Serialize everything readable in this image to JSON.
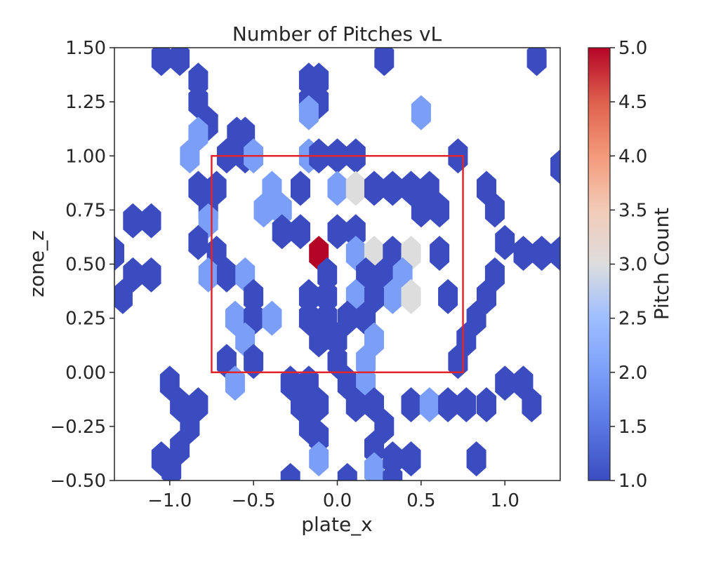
{
  "chart_data": {
    "type": "hexbin",
    "title": "Number of Pitches vL",
    "xlabel": "plate_x",
    "ylabel": "zone_z",
    "xlim": [
      -1.33,
      1.33
    ],
    "ylim": [
      -0.5,
      1.5
    ],
    "x_ticks": [
      -1.0,
      -0.5,
      0.0,
      0.5,
      1.0
    ],
    "x_tick_labels": [
      "−1.0",
      "−0.5",
      "0.0",
      "0.5",
      "1.0"
    ],
    "y_ticks": [
      1.5,
      1.25,
      1.0,
      0.75,
      0.5,
      0.25,
      0.0,
      -0.25,
      -0.5
    ],
    "y_tick_labels": [
      "1.50",
      "1.25",
      "1.00",
      "0.75",
      "0.50",
      "0.25",
      "0.00",
      "−0.25",
      "−0.50"
    ],
    "grid": false,
    "colorbar": {
      "label": "Pitch Count",
      "range": [
        1.0,
        5.0
      ],
      "ticks": [
        5.0,
        4.5,
        4.0,
        3.5,
        3.0,
        2.5,
        2.0,
        1.5,
        1.0
      ],
      "tick_labels": [
        "5.0",
        "4.5",
        "4.0",
        "3.5",
        "3.0",
        "2.5",
        "2.0",
        "1.5",
        "1.0"
      ],
      "colormap": "coolwarm"
    },
    "strike_zone": {
      "x": [
        -0.75,
        0.75
      ],
      "z": [
        0.0,
        1.0
      ],
      "color": "#e3242b"
    },
    "bins": [
      {
        "x": -1.05,
        "z": 1.45,
        "count": 1
      },
      {
        "x": -0.94,
        "z": 1.45,
        "count": 1
      },
      {
        "x": 0.28,
        "z": 1.45,
        "count": 1
      },
      {
        "x": 1.19,
        "z": 1.45,
        "count": 1
      },
      {
        "x": -0.83,
        "z": 1.35,
        "count": 1
      },
      {
        "x": -0.83,
        "z": 1.25,
        "count": 1
      },
      {
        "x": -0.17,
        "z": 1.35,
        "count": 1
      },
      {
        "x": -0.11,
        "z": 1.35,
        "count": 1
      },
      {
        "x": -0.17,
        "z": 1.25,
        "count": 1
      },
      {
        "x": -0.11,
        "z": 1.25,
        "count": 1
      },
      {
        "x": -0.17,
        "z": 1.2,
        "count": 2
      },
      {
        "x": 0.5,
        "z": 1.2,
        "count": 2
      },
      {
        "x": -0.77,
        "z": 1.15,
        "count": 1
      },
      {
        "x": -0.83,
        "z": 1.1,
        "count": 2
      },
      {
        "x": -0.88,
        "z": 1.0,
        "count": 2
      },
      {
        "x": -0.6,
        "z": 1.1,
        "count": 1
      },
      {
        "x": -0.55,
        "z": 1.1,
        "count": 1
      },
      {
        "x": -0.66,
        "z": 1.0,
        "count": 1
      },
      {
        "x": -0.55,
        "z": 1.0,
        "count": 1
      },
      {
        "x": -0.5,
        "z": 1.0,
        "count": 2
      },
      {
        "x": -0.17,
        "z": 1.0,
        "count": 2
      },
      {
        "x": -0.11,
        "z": 1.0,
        "count": 1
      },
      {
        "x": 0.0,
        "z": 1.0,
        "count": 1
      },
      {
        "x": 0.11,
        "z": 1.0,
        "count": 1
      },
      {
        "x": 0.72,
        "z": 1.0,
        "count": 1
      },
      {
        "x": 1.33,
        "z": 0.95,
        "count": 1
      },
      {
        "x": -0.83,
        "z": 0.85,
        "count": 1
      },
      {
        "x": -0.72,
        "z": 0.85,
        "count": 1
      },
      {
        "x": -0.77,
        "z": 0.75,
        "count": 1
      },
      {
        "x": -0.39,
        "z": 0.85,
        "count": 2
      },
      {
        "x": -0.44,
        "z": 0.75,
        "count": 2
      },
      {
        "x": -0.33,
        "z": 0.75,
        "count": 2
      },
      {
        "x": -0.22,
        "z": 0.85,
        "count": 1
      },
      {
        "x": 0.0,
        "z": 0.85,
        "count": 2
      },
      {
        "x": 0.11,
        "z": 0.85,
        "count": 3
      },
      {
        "x": 0.22,
        "z": 0.85,
        "count": 1
      },
      {
        "x": 0.33,
        "z": 0.85,
        "count": 1
      },
      {
        "x": 0.44,
        "z": 0.85,
        "count": 1
      },
      {
        "x": 0.55,
        "z": 0.85,
        "count": 1
      },
      {
        "x": 0.61,
        "z": 0.75,
        "count": 1
      },
      {
        "x": 0.5,
        "z": 0.75,
        "count": 1
      },
      {
        "x": 0.89,
        "z": 0.85,
        "count": 1
      },
      {
        "x": 0.94,
        "z": 0.75,
        "count": 1
      },
      {
        "x": -1.22,
        "z": 0.7,
        "count": 1
      },
      {
        "x": -1.11,
        "z": 0.7,
        "count": 1
      },
      {
        "x": -0.77,
        "z": 0.7,
        "count": 2
      },
      {
        "x": -0.33,
        "z": 0.65,
        "count": 1
      },
      {
        "x": -0.22,
        "z": 0.65,
        "count": 1
      },
      {
        "x": 0.0,
        "z": 0.65,
        "count": 1
      },
      {
        "x": 0.11,
        "z": 0.65,
        "count": 1
      },
      {
        "x": -0.11,
        "z": 0.55,
        "count": 5
      },
      {
        "x": 0.11,
        "z": 0.55,
        "count": 2
      },
      {
        "x": 0.22,
        "z": 0.55,
        "count": 3
      },
      {
        "x": 0.33,
        "z": 0.55,
        "count": 1
      },
      {
        "x": 0.44,
        "z": 0.55,
        "count": 3
      },
      {
        "x": 0.61,
        "z": 0.55,
        "count": 1
      },
      {
        "x": -0.83,
        "z": 0.6,
        "count": 1
      },
      {
        "x": -0.72,
        "z": 0.55,
        "count": 1
      },
      {
        "x": -0.77,
        "z": 0.45,
        "count": 2
      },
      {
        "x": -0.66,
        "z": 0.45,
        "count": 1
      },
      {
        "x": -0.55,
        "z": 0.45,
        "count": 2
      },
      {
        "x": 1.0,
        "z": 0.6,
        "count": 1
      },
      {
        "x": 1.11,
        "z": 0.55,
        "count": 1
      },
      {
        "x": 1.22,
        "z": 0.55,
        "count": 1
      },
      {
        "x": 1.33,
        "z": 0.55,
        "count": 1
      },
      {
        "x": 0.94,
        "z": 0.45,
        "count": 1
      },
      {
        "x": -1.33,
        "z": 0.55,
        "count": 1
      },
      {
        "x": -1.22,
        "z": 0.45,
        "count": 1
      },
      {
        "x": -1.11,
        "z": 0.45,
        "count": 1
      },
      {
        "x": -1.28,
        "z": 0.35,
        "count": 1
      },
      {
        "x": -0.06,
        "z": 0.45,
        "count": 1
      },
      {
        "x": -0.17,
        "z": 0.35,
        "count": 1
      },
      {
        "x": -0.06,
        "z": 0.35,
        "count": 1
      },
      {
        "x": 0.17,
        "z": 0.45,
        "count": 1
      },
      {
        "x": 0.28,
        "z": 0.45,
        "count": 1
      },
      {
        "x": 0.39,
        "z": 0.45,
        "count": 2
      },
      {
        "x": 0.33,
        "z": 0.35,
        "count": 2
      },
      {
        "x": 0.44,
        "z": 0.35,
        "count": 3
      },
      {
        "x": 0.11,
        "z": 0.35,
        "count": 2
      },
      {
        "x": 0.22,
        "z": 0.35,
        "count": 1
      },
      {
        "x": 0.66,
        "z": 0.35,
        "count": 1
      },
      {
        "x": 0.89,
        "z": 0.35,
        "count": 1
      },
      {
        "x": -0.5,
        "z": 0.35,
        "count": 1
      },
      {
        "x": -0.61,
        "z": 0.25,
        "count": 2
      },
      {
        "x": -0.5,
        "z": 0.25,
        "count": 1
      },
      {
        "x": -0.39,
        "z": 0.25,
        "count": 2
      },
      {
        "x": -0.17,
        "z": 0.25,
        "count": 1
      },
      {
        "x": -0.06,
        "z": 0.25,
        "count": 1
      },
      {
        "x": 0.06,
        "z": 0.25,
        "count": 1
      },
      {
        "x": 0.17,
        "z": 0.25,
        "count": 1
      },
      {
        "x": 0.22,
        "z": 0.15,
        "count": 2
      },
      {
        "x": 0.0,
        "z": 0.15,
        "count": 1
      },
      {
        "x": -0.11,
        "z": 0.15,
        "count": 1
      },
      {
        "x": 0.83,
        "z": 0.25,
        "count": 1
      },
      {
        "x": 0.77,
        "z": 0.15,
        "count": 1
      },
      {
        "x": -0.66,
        "z": 0.05,
        "count": 1
      },
      {
        "x": -0.55,
        "z": 0.15,
        "count": 2
      },
      {
        "x": -0.5,
        "z": 0.05,
        "count": 1
      },
      {
        "x": 0.0,
        "z": 0.05,
        "count": 1
      },
      {
        "x": 0.17,
        "z": 0.05,
        "count": 2
      },
      {
        "x": 0.72,
        "z": 0.05,
        "count": 1
      },
      {
        "x": -0.61,
        "z": -0.05,
        "count": 2
      },
      {
        "x": -1.0,
        "z": -0.05,
        "count": 1
      },
      {
        "x": -0.94,
        "z": -0.15,
        "count": 1
      },
      {
        "x": -0.83,
        "z": -0.15,
        "count": 1
      },
      {
        "x": -0.88,
        "z": -0.25,
        "count": 1
      },
      {
        "x": -0.94,
        "z": -0.35,
        "count": 1
      },
      {
        "x": -0.99,
        "z": -0.45,
        "count": 1
      },
      {
        "x": -1.05,
        "z": -0.4,
        "count": 1
      },
      {
        "x": -0.28,
        "z": -0.05,
        "count": 1
      },
      {
        "x": -0.17,
        "z": -0.05,
        "count": 1
      },
      {
        "x": -0.22,
        "z": -0.15,
        "count": 1
      },
      {
        "x": -0.11,
        "z": -0.15,
        "count": 1
      },
      {
        "x": -0.17,
        "z": -0.25,
        "count": 1
      },
      {
        "x": -0.11,
        "z": -0.3,
        "count": 1
      },
      {
        "x": -0.11,
        "z": -0.4,
        "count": 2
      },
      {
        "x": 0.06,
        "z": -0.05,
        "count": 1
      },
      {
        "x": 0.17,
        "z": -0.05,
        "count": 2
      },
      {
        "x": 0.11,
        "z": -0.15,
        "count": 1
      },
      {
        "x": 0.22,
        "z": -0.15,
        "count": 1
      },
      {
        "x": 0.28,
        "z": -0.25,
        "count": 1
      },
      {
        "x": 0.22,
        "z": -0.35,
        "count": 1
      },
      {
        "x": 0.22,
        "z": -0.45,
        "count": 2
      },
      {
        "x": 0.33,
        "z": -0.4,
        "count": 1
      },
      {
        "x": 0.44,
        "z": -0.4,
        "count": 1
      },
      {
        "x": 0.33,
        "z": -0.5,
        "count": 1
      },
      {
        "x": -0.28,
        "z": -0.5,
        "count": 1
      },
      {
        "x": 0.06,
        "z": -0.5,
        "count": 1
      },
      {
        "x": 0.44,
        "z": -0.15,
        "count": 1
      },
      {
        "x": 0.55,
        "z": -0.15,
        "count": 2
      },
      {
        "x": 0.66,
        "z": -0.15,
        "count": 1
      },
      {
        "x": 0.77,
        "z": -0.15,
        "count": 1
      },
      {
        "x": 0.89,
        "z": -0.15,
        "count": 1
      },
      {
        "x": 1.0,
        "z": -0.05,
        "count": 1
      },
      {
        "x": 1.11,
        "z": -0.05,
        "count": 1
      },
      {
        "x": 1.16,
        "z": -0.15,
        "count": 1
      },
      {
        "x": 0.83,
        "z": -0.4,
        "count": 1
      }
    ]
  }
}
